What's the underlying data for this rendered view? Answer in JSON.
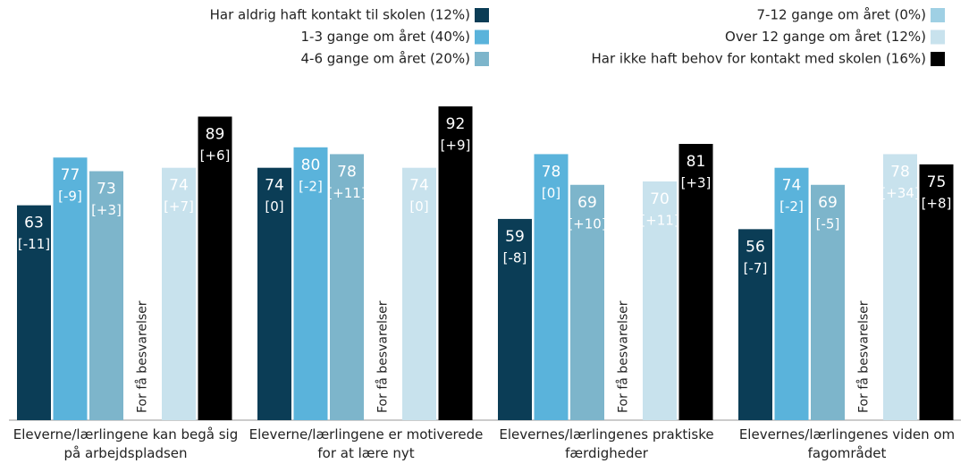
{
  "chart_data": {
    "type": "bar",
    "categories": [
      "Eleverne/lærlingene kan begå sig på arbejdspladsen",
      "Eleverne/lærlingene er motiverede for at lære nyt",
      "Elevernes/lærlingenes praktiske færdigheder",
      "Elevernes/lærlingenes viden om fagområdet"
    ],
    "series": [
      {
        "name": "Har aldrig haft kontakt til skolen (12%)",
        "color": "#0b3d56",
        "values": [
          63,
          74,
          59,
          56
        ],
        "change_labels": [
          "[-11]",
          "[0]",
          "[-8]",
          "[-7]"
        ]
      },
      {
        "name": "1-3 gange om året (40%)",
        "color": "#5ab3db",
        "values": [
          77,
          80,
          78,
          74
        ],
        "change_labels": [
          "[-9]",
          "[-2]",
          "[0]",
          "[-2]"
        ]
      },
      {
        "name": "4-6 gange om året (20%)",
        "color": "#7db5cb",
        "values": [
          73,
          78,
          69,
          69
        ],
        "change_labels": [
          "[+3]",
          "[+11]",
          "[+10]",
          "[-5]"
        ]
      },
      {
        "name": "7-12 gange om året (0%)",
        "color": "#9fd0e4",
        "values": [
          null,
          null,
          null,
          null
        ],
        "change_labels": [
          null,
          null,
          null,
          null
        ]
      },
      {
        "name": "Over 12 gange om året (12%)",
        "color": "#c8e2ed",
        "values": [
          74,
          74,
          70,
          78
        ],
        "change_labels": [
          "[+7]",
          "[0]",
          "[+11]",
          "[+34]"
        ]
      },
      {
        "name": "Har ikke haft behov for kontakt med skolen (16%)",
        "color": "#000000",
        "values": [
          89,
          92,
          81,
          75
        ],
        "change_labels": [
          "[+6]",
          "[+9]",
          "[+3]",
          "[+8]"
        ]
      }
    ],
    "annotation": "For få besvarelser",
    "ylim": [
      0,
      100
    ]
  }
}
